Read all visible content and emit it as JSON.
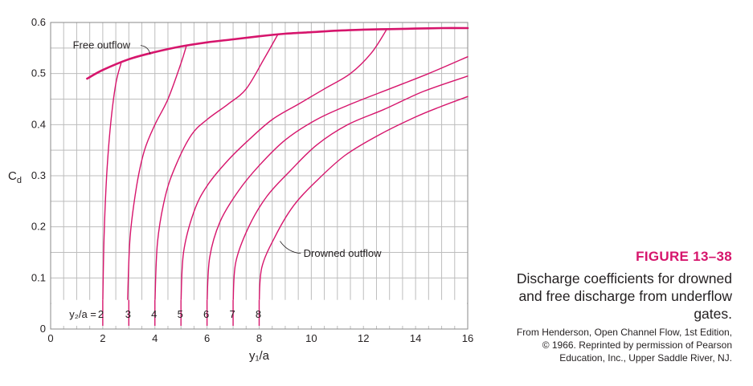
{
  "chart_data": {
    "type": "line",
    "xlabel": "y₁/a",
    "ylabel": "C",
    "ylabel_sub": "d",
    "xlim": [
      0,
      16
    ],
    "ylim": [
      0,
      0.6
    ],
    "xticks": [
      0,
      2,
      4,
      6,
      8,
      10,
      12,
      14,
      16
    ],
    "yticks": [
      0,
      0.1,
      0.2,
      0.3,
      0.4,
      0.5,
      0.6
    ],
    "grid": true,
    "series": [
      {
        "name": "Free outflow",
        "x": [
          1.4,
          2,
          3,
          4,
          5,
          6,
          7,
          8,
          9,
          10,
          11,
          12,
          13,
          14,
          15,
          16
        ],
        "y": [
          0.49,
          0.507,
          0.528,
          0.542,
          0.553,
          0.561,
          0.567,
          0.573,
          0.578,
          0.581,
          0.584,
          0.586,
          0.587,
          0.588,
          0.589,
          0.589
        ]
      },
      {
        "x": [
          2,
          2.05,
          2.15,
          2.3,
          2.5,
          2.7
        ],
        "y": [
          0.05,
          0.18,
          0.3,
          0.4,
          0.48,
          0.52
        ]
      },
      {
        "x": [
          2.95,
          3.05,
          3.3,
          3.6,
          4.0,
          4.5,
          5.0,
          5.2
        ],
        "y": [
          0.05,
          0.18,
          0.28,
          0.35,
          0.4,
          0.45,
          0.52,
          0.553
        ]
      },
      {
        "x": [
          4.0,
          4.1,
          4.4,
          4.8,
          5.4,
          6.0,
          6.8,
          7.5,
          8.2,
          8.7
        ],
        "y": [
          0.05,
          0.17,
          0.26,
          0.32,
          0.38,
          0.41,
          0.44,
          0.47,
          0.53,
          0.575
        ]
      },
      {
        "x": [
          5.0,
          5.1,
          5.5,
          6.0,
          6.8,
          7.6,
          8.5,
          9.5,
          10.5,
          11.5,
          12.3,
          12.9
        ],
        "y": [
          0.05,
          0.15,
          0.23,
          0.28,
          0.33,
          0.37,
          0.41,
          0.44,
          0.47,
          0.5,
          0.54,
          0.587
        ]
      },
      {
        "x": [
          6.0,
          6.1,
          6.5,
          7.2,
          8.0,
          9.0,
          10.2,
          11.5,
          13.0,
          14.5,
          16.0
        ],
        "y": [
          0.05,
          0.14,
          0.21,
          0.27,
          0.32,
          0.37,
          0.41,
          0.44,
          0.47,
          0.5,
          0.533
        ]
      },
      {
        "x": [
          7.0,
          7.1,
          7.6,
          8.3,
          9.2,
          10.2,
          11.4,
          12.8,
          14.3,
          16.0
        ],
        "y": [
          0.05,
          0.13,
          0.2,
          0.26,
          0.31,
          0.36,
          0.4,
          0.43,
          0.465,
          0.495
        ]
      },
      {
        "name": "Drowned outflow",
        "x": [
          8.0,
          8.1,
          8.6,
          9.3,
          10.2,
          11.3,
          12.6,
          14.0,
          15.0,
          16.0
        ],
        "y": [
          0.05,
          0.12,
          0.18,
          0.24,
          0.29,
          0.34,
          0.38,
          0.415,
          0.436,
          0.455
        ]
      }
    ],
    "annotations": {
      "free_outflow": "Free outflow",
      "drowned_outflow": "Drowned outflow",
      "y2a_prefix": "y₂/a = ",
      "y2a_values": [
        2,
        3,
        4,
        5,
        6,
        7,
        8
      ]
    }
  },
  "caption": {
    "figure_label": "FIGURE 13–38",
    "title_lines": [
      "Discharge coefficients for drowned",
      "and free discharge from underflow",
      "gates."
    ],
    "source_lines": [
      "From Henderson,  Open Channel Flow, 1st Edition,",
      "© 1966. Reprinted by permission of Pearson",
      "Education, Inc., Upper Saddle River, NJ."
    ]
  },
  "colors": {
    "curve": "#d6156c",
    "grid": "#bdbdbd",
    "text": "#231f20"
  }
}
